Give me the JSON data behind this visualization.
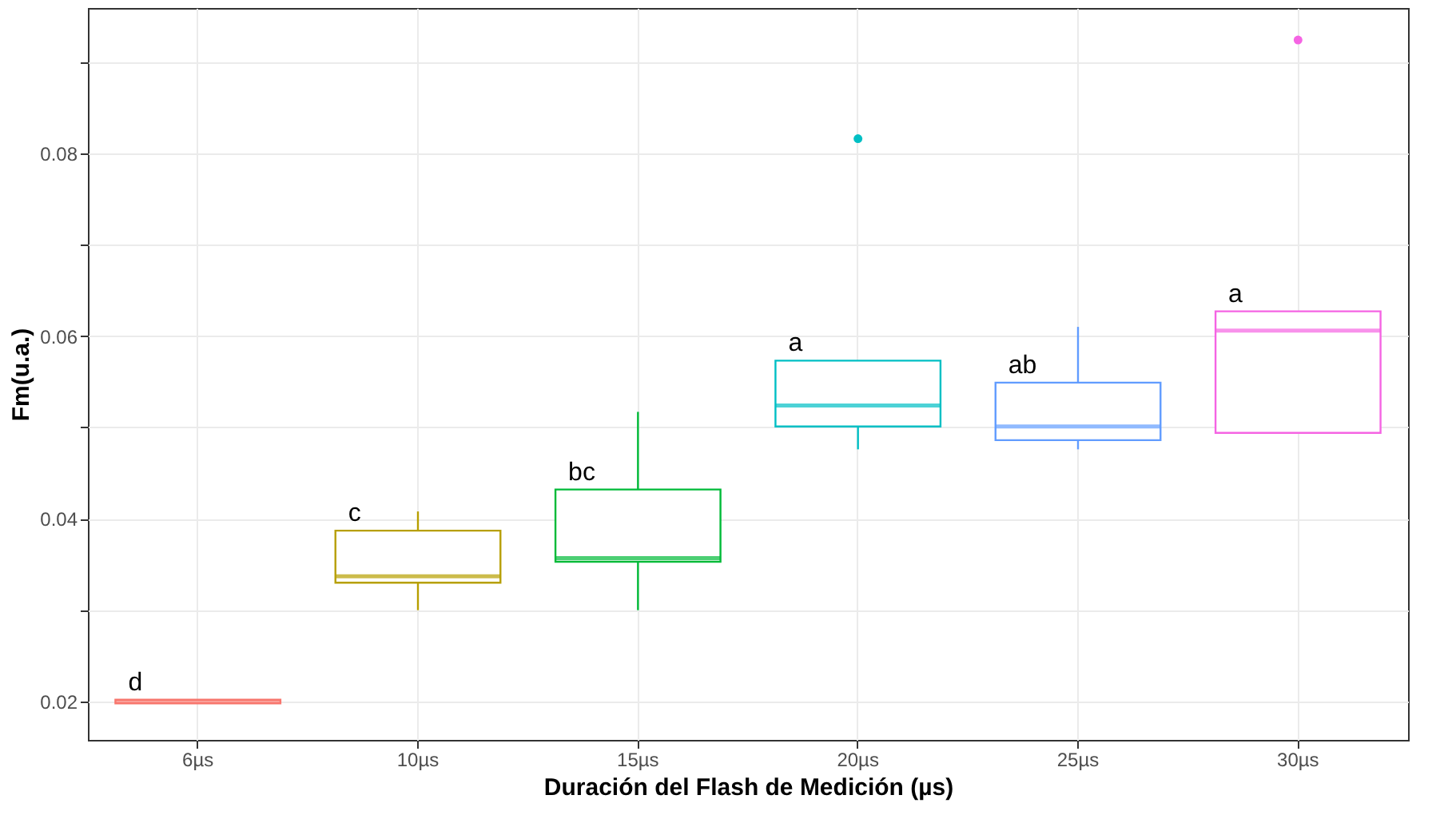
{
  "chart_data": {
    "type": "box",
    "xlabel": "Duración del Flash de Medición (µs)",
    "ylabel": "Fm(u.a.)",
    "categories": [
      "6µs",
      "10µs",
      "15µs",
      "20µs",
      "25µs",
      "30µs"
    ],
    "colors": [
      "#f8766d",
      "#b79f00",
      "#00ba38",
      "#00bfc4",
      "#619cff",
      "#f564e3"
    ],
    "boxes": [
      {
        "low": 0.0198,
        "q1": 0.0198,
        "median": 0.02,
        "q3": 0.0202,
        "high": 0.0202
      },
      {
        "low": 0.03,
        "q1": 0.033,
        "median": 0.0337,
        "q3": 0.0387,
        "high": 0.0408
      },
      {
        "low": 0.03,
        "q1": 0.0353,
        "median": 0.0357,
        "q3": 0.0432,
        "high": 0.0517
      },
      {
        "low": 0.0476,
        "q1": 0.0501,
        "median": 0.0524,
        "q3": 0.0573,
        "high": 0.0573,
        "outliers": [
          0.0816
        ]
      },
      {
        "low": 0.0476,
        "q1": 0.0486,
        "median": 0.0501,
        "q3": 0.0549,
        "high": 0.061
      },
      {
        "low": 0.0494,
        "q1": 0.0494,
        "median": 0.0606,
        "q3": 0.0627,
        "high": 0.0627,
        "outliers": [
          0.0924
        ]
      }
    ],
    "ylim": [
      0.0158,
      0.0959
    ],
    "yticks": [
      0.02,
      {
        "value": 0.03,
        "label": null
      },
      0.04,
      {
        "value": 0.05,
        "label": null
      },
      0.06,
      {
        "value": 0.07,
        "label": null
      },
      0.08,
      {
        "value": 0.09,
        "label": null
      }
    ],
    "grid": true,
    "annotations": [
      "d",
      "c",
      "bc",
      "a",
      "ab",
      "a"
    ]
  }
}
